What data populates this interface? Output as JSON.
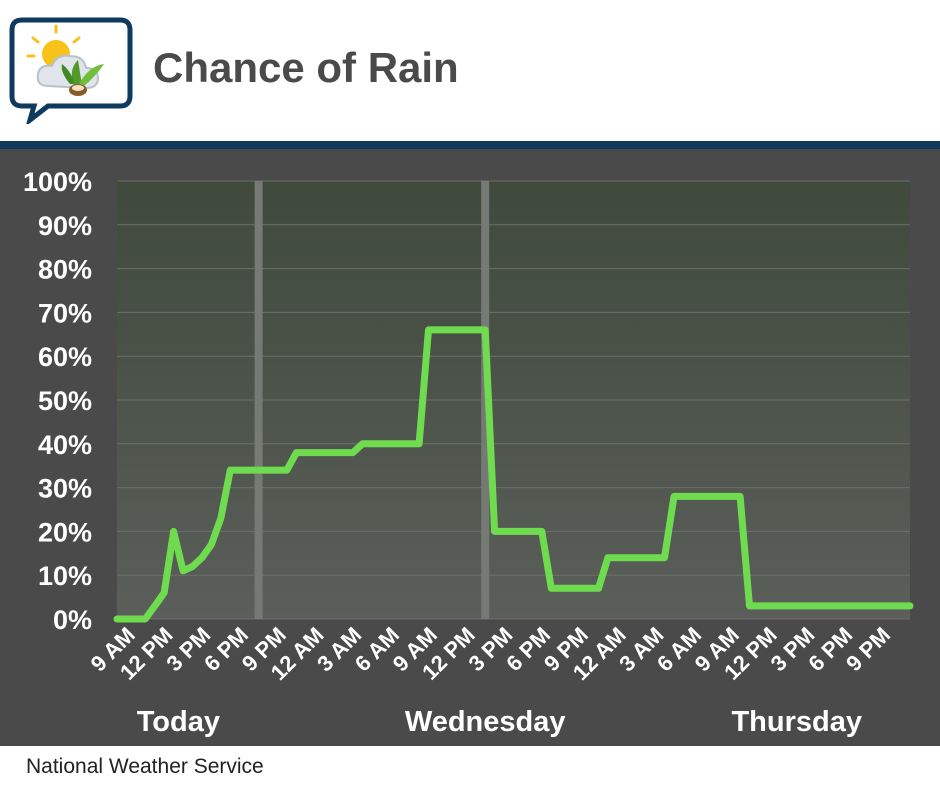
{
  "header": {
    "title": "Chance of Rain"
  },
  "footer": {
    "source": "National Weather Service"
  },
  "colors": {
    "line": "#6fdc4f",
    "rule": "#0e3a5e",
    "plot_bg": "#4a4a4a",
    "text": "#4a4a4a"
  },
  "logo": {
    "icon": "weather-leaf-speech-bubble-icon"
  },
  "chart_data": {
    "type": "line",
    "title": "Chance of Rain",
    "xlabel": "",
    "ylabel": "",
    "ylim": [
      0,
      100
    ],
    "yticks": [
      "0%",
      "10%",
      "20%",
      "30%",
      "40%",
      "50%",
      "60%",
      "70%",
      "80%",
      "90%",
      "100%"
    ],
    "xtick_labels": [
      "9 AM",
      "12 PM",
      "3 PM",
      "6 PM",
      "9 PM",
      "12 AM",
      "3 AM",
      "6 AM",
      "9 AM",
      "12 PM",
      "3 PM",
      "6 PM",
      "9 PM",
      "12 AM",
      "3 AM",
      "6 AM",
      "9 AM",
      "12 PM",
      "3 PM",
      "6 PM",
      "9 PM"
    ],
    "days": [
      {
        "label": "Today",
        "center_hour": 6.5
      },
      {
        "label": "Wednesday",
        "center_hour": 39
      },
      {
        "label": "Thursday",
        "center_hour": 72
      }
    ],
    "day_dividers_hour": [
      15,
      39
    ],
    "x_hours_range": [
      0,
      84
    ],
    "grid": true,
    "series": [
      {
        "x_hours": [
          0,
          1,
          2,
          3,
          4,
          5,
          6,
          7,
          8,
          9,
          10,
          11,
          12,
          13,
          14,
          15,
          16,
          17,
          18,
          19,
          20,
          21,
          22,
          23,
          24,
          25,
          26,
          27,
          28,
          29,
          30,
          31,
          32,
          33,
          34,
          35,
          36,
          37,
          38,
          39,
          40,
          41,
          42,
          43,
          44,
          45,
          46,
          47,
          48,
          49,
          50,
          51,
          52,
          53,
          54,
          55,
          56,
          57,
          58,
          59,
          60,
          61,
          62,
          63,
          64,
          65,
          66,
          67,
          68,
          69,
          70,
          71,
          72,
          73,
          74,
          75,
          76,
          77,
          78,
          79,
          80,
          81,
          82,
          83,
          84
        ],
        "values": [
          0,
          0,
          0,
          0,
          3,
          6,
          20,
          11,
          12,
          14,
          17,
          23,
          34,
          34,
          34,
          34,
          34,
          34,
          34,
          38,
          38,
          38,
          38,
          38,
          38,
          38,
          40,
          40,
          40,
          40,
          40,
          40,
          40,
          66,
          66,
          66,
          66,
          66,
          66,
          66,
          20,
          20,
          20,
          20,
          20,
          20,
          7,
          7,
          7,
          7,
          7,
          7,
          14,
          14,
          14,
          14,
          14,
          14,
          14,
          28,
          28,
          28,
          28,
          28,
          28,
          28,
          28,
          3,
          3,
          3,
          3,
          3,
          3,
          3,
          3,
          3,
          3,
          3,
          3,
          3,
          3,
          3,
          3,
          3,
          3
        ]
      }
    ]
  }
}
